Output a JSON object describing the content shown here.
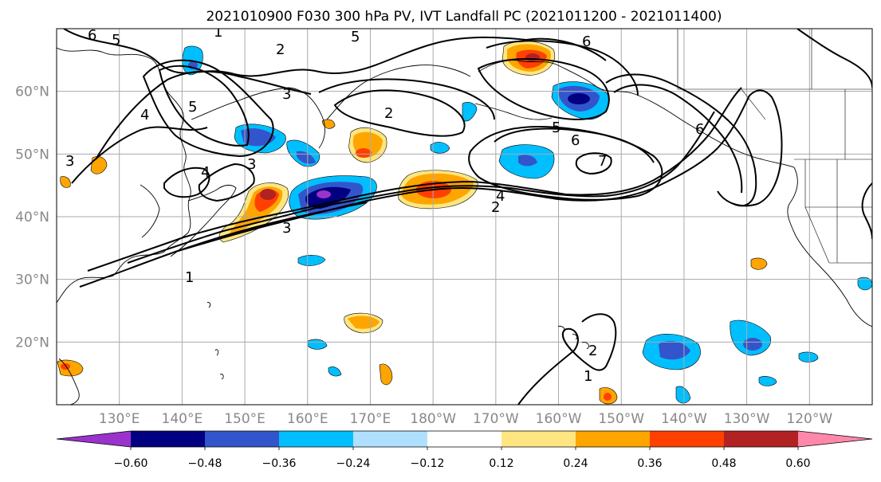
{
  "title": "2021010900 F030 300 hPa PV, IVT Landfall PC (2021011200 - 2021011400)",
  "map": {
    "lat_labels": [
      "60°N",
      "50°N",
      "40°N",
      "30°N",
      "20°N"
    ],
    "lat_values": [
      60,
      50,
      40,
      30,
      20
    ],
    "lon_labels": [
      "130°E",
      "140°E",
      "150°E",
      "160°E",
      "170°E",
      "180°W",
      "170°W",
      "160°W",
      "150°W",
      "140°W",
      "130°W",
      "120°W"
    ],
    "lon_values": [
      130,
      140,
      150,
      160,
      170,
      180,
      190,
      200,
      210,
      220,
      230,
      240
    ],
    "extent": {
      "lon_min": 120,
      "lon_max": 250,
      "lat_min": 10,
      "lat_max": 70
    },
    "gridlines": true
  },
  "contours": {
    "labels": [
      "1",
      "1",
      "1",
      "2",
      "2",
      "2",
      "2",
      "3",
      "3",
      "3",
      "3",
      "4",
      "4",
      "4",
      "5",
      "5",
      "5",
      "5",
      "6",
      "6",
      "6",
      "6",
      "7"
    ]
  },
  "colorbar": {
    "tick_labels": [
      "−0.60",
      "−0.48",
      "−0.36",
      "−0.24",
      "−0.12",
      "0.12",
      "0.24",
      "0.36",
      "0.48",
      "0.60"
    ],
    "colors": [
      "#9933cc",
      "#000080",
      "#3355cc",
      "#00bfff",
      "#b0e0ff",
      "#ffffff",
      "#ffe680",
      "#ffa500",
      "#ff4000",
      "#b22222",
      "#ff88aa"
    ]
  }
}
